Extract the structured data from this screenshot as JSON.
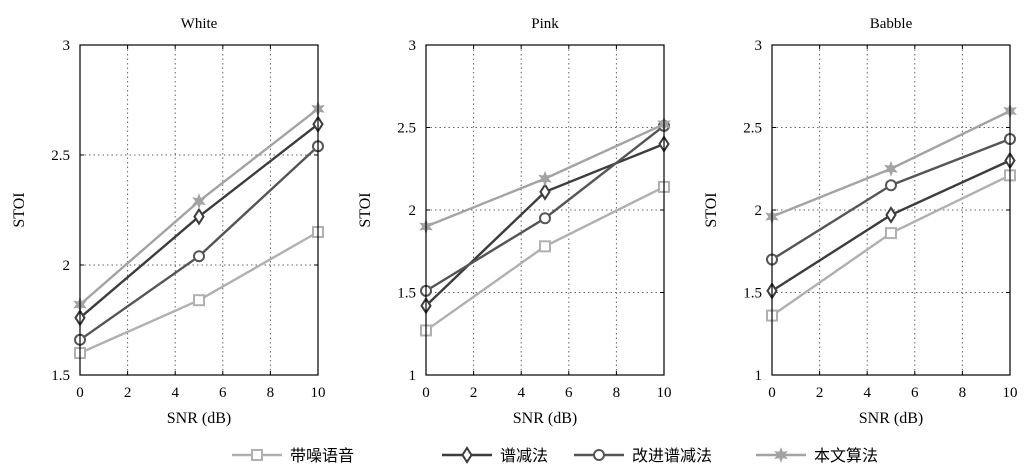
{
  "colors": {
    "带噪语音": "#b0b0b0",
    "谱减法": "#3c3c3c",
    "改进谱减法": "#555555",
    "本文算法": "#a3a3a3"
  },
  "chart_data": [
    {
      "type": "line",
      "title": "White",
      "xlabel": "SNR (dB)",
      "ylabel": "STOI",
      "xlim": [
        0,
        10
      ],
      "ylim": [
        1.5,
        3
      ],
      "xticks": [
        0,
        2,
        4,
        6,
        8,
        10
      ],
      "yticks": [
        1.5,
        2,
        2.5,
        3
      ],
      "ytick_labels": [
        "1.5",
        "2",
        "2.5",
        "3"
      ],
      "grid": true,
      "x": [
        0,
        5,
        10
      ],
      "series": [
        {
          "name": "带噪语音",
          "marker": "square",
          "values": [
            1.6,
            1.84,
            2.15
          ]
        },
        {
          "name": "谱减法",
          "marker": "diamond",
          "values": [
            1.76,
            2.22,
            2.64
          ]
        },
        {
          "name": "改进谱减法",
          "marker": "circle",
          "values": [
            1.66,
            2.04,
            2.54
          ]
        },
        {
          "name": "本文算法",
          "marker": "star",
          "values": [
            1.82,
            2.29,
            2.71
          ]
        }
      ]
    },
    {
      "type": "line",
      "title": "Pink",
      "xlabel": "SNR (dB)",
      "ylabel": "STOI",
      "xlim": [
        0,
        10
      ],
      "ylim": [
        1,
        3
      ],
      "xticks": [
        0,
        2,
        4,
        6,
        8,
        10
      ],
      "yticks": [
        1,
        1.5,
        2,
        2.5,
        3
      ],
      "ytick_labels": [
        "1",
        "1.5",
        "2",
        "2.5",
        "3"
      ],
      "grid": true,
      "x": [
        0,
        5,
        10
      ],
      "series": [
        {
          "name": "带噪语音",
          "marker": "square",
          "values": [
            1.27,
            1.78,
            2.14
          ]
        },
        {
          "name": "谱减法",
          "marker": "diamond",
          "values": [
            1.42,
            2.11,
            2.4
          ]
        },
        {
          "name": "改进谱减法",
          "marker": "circle",
          "values": [
            1.51,
            1.95,
            2.51
          ]
        },
        {
          "name": "本文算法",
          "marker": "star",
          "values": [
            1.9,
            2.19,
            2.52
          ]
        }
      ]
    },
    {
      "type": "line",
      "title": "Babble",
      "xlabel": "SNR (dB)",
      "ylabel": "STOI",
      "xlim": [
        0,
        10
      ],
      "ylim": [
        1,
        3
      ],
      "xticks": [
        0,
        2,
        4,
        6,
        8,
        10
      ],
      "yticks": [
        1,
        1.5,
        2,
        2.5,
        3
      ],
      "ytick_labels": [
        "1",
        "1.5",
        "2",
        "2.5",
        "3"
      ],
      "grid": true,
      "x": [
        0,
        5,
        10
      ],
      "series": [
        {
          "name": "带噪语音",
          "marker": "square",
          "values": [
            1.36,
            1.86,
            2.21
          ]
        },
        {
          "name": "谱减法",
          "marker": "diamond",
          "values": [
            1.51,
            1.97,
            2.3
          ]
        },
        {
          "name": "改进谱减法",
          "marker": "circle",
          "values": [
            1.7,
            2.15,
            2.43
          ]
        },
        {
          "name": "本文算法",
          "marker": "star",
          "values": [
            1.96,
            2.25,
            2.6
          ]
        }
      ]
    }
  ],
  "legend": {
    "placement": "bottom-center",
    "items": [
      "带噪语音",
      "谱减法",
      "改进谱减法",
      "本文算法"
    ]
  }
}
